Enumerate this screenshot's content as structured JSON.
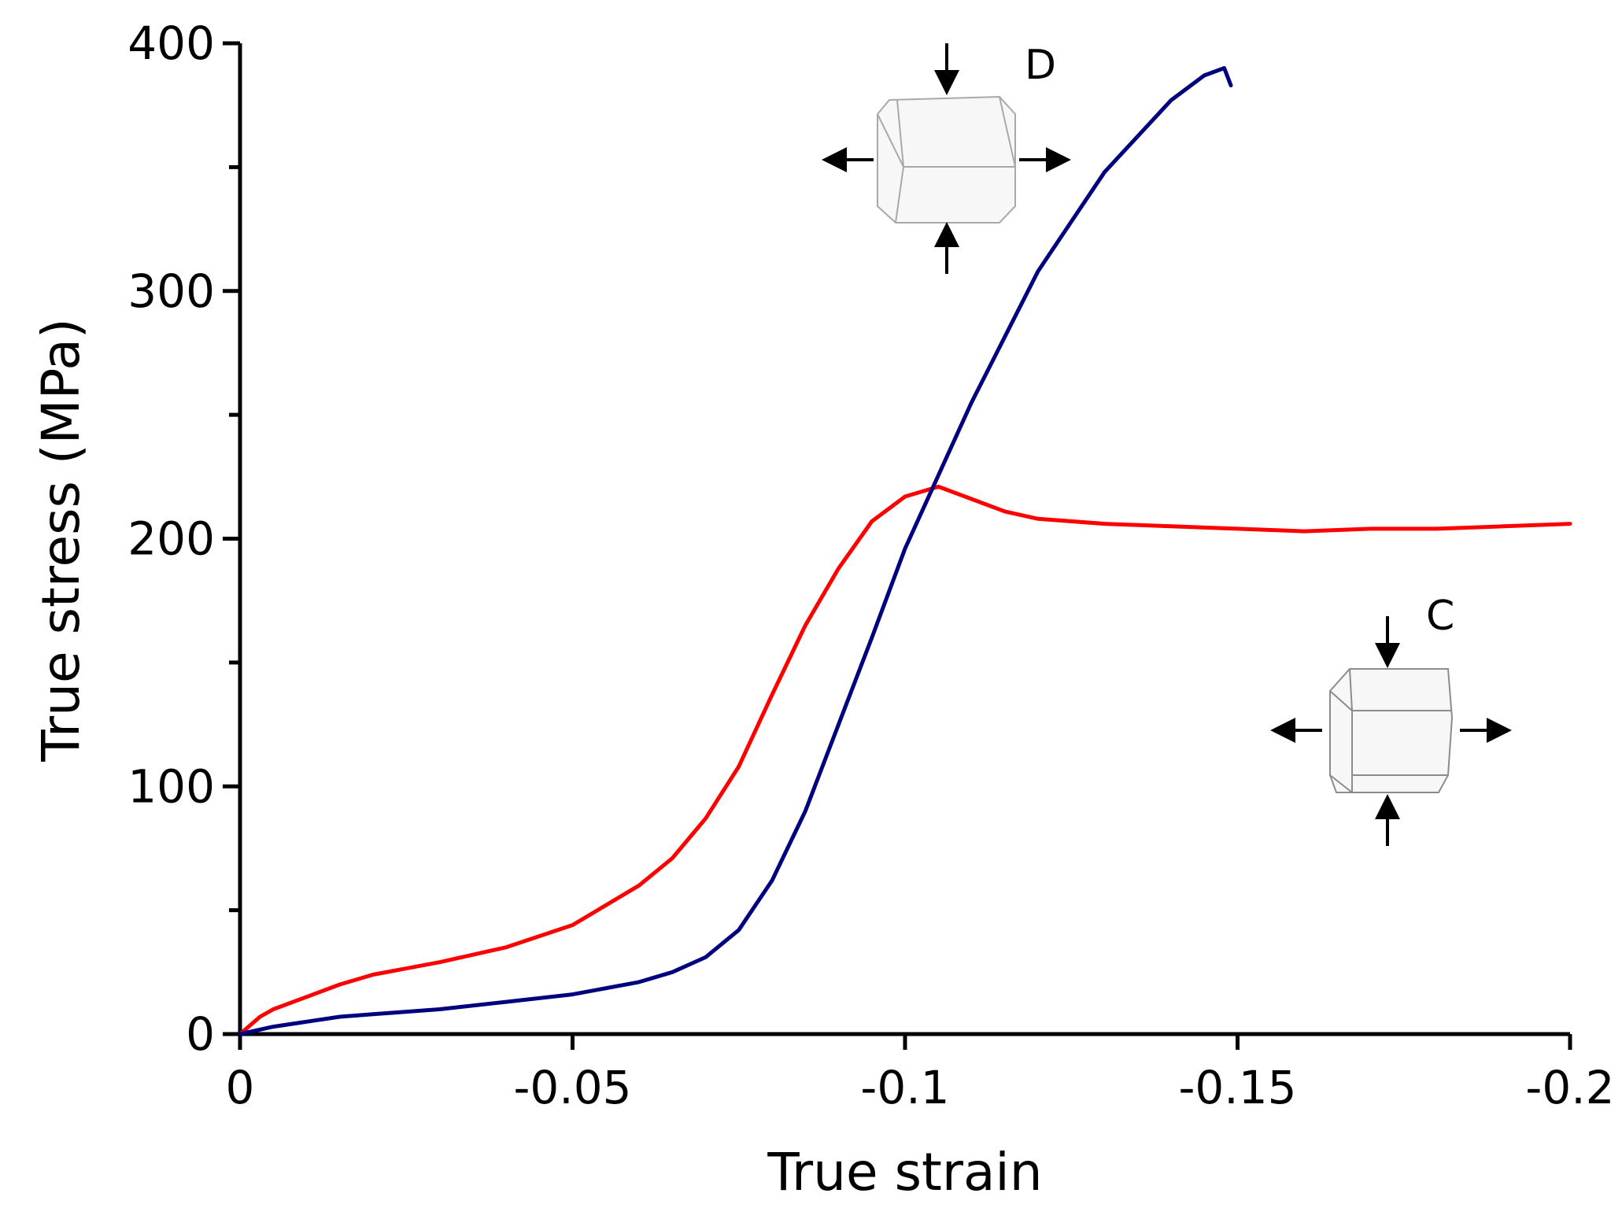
{
  "chart_data": {
    "type": "line",
    "title": "",
    "xlabel": "True strain",
    "ylabel": "True stress (MPa)",
    "xlim": [
      0,
      -0.2
    ],
    "ylim": [
      0,
      400
    ],
    "x_ticks": [
      0,
      -0.05,
      -0.1,
      -0.15,
      -0.2
    ],
    "x_tick_labels": [
      "0",
      "-0.05",
      "-0.1",
      "-0.15",
      "-0.2"
    ],
    "y_ticks": [
      0,
      100,
      200,
      300,
      400
    ],
    "y_tick_labels": [
      "0",
      "100",
      "200",
      "300",
      "400"
    ],
    "y_minor_ticks": [
      50,
      150,
      250,
      350
    ],
    "grid": false,
    "legend": "none",
    "series": [
      {
        "name": "D",
        "color": "#00007f",
        "x": [
          0,
          -0.005,
          -0.01,
          -0.015,
          -0.02,
          -0.03,
          -0.04,
          -0.05,
          -0.06,
          -0.065,
          -0.07,
          -0.075,
          -0.08,
          -0.085,
          -0.09,
          -0.095,
          -0.1,
          -0.11,
          -0.12,
          -0.13,
          -0.14,
          -0.145,
          -0.148,
          -0.149
        ],
        "y": [
          0,
          3,
          5,
          7,
          8,
          10,
          13,
          16,
          21,
          25,
          31,
          42,
          62,
          90,
          125,
          160,
          196,
          255,
          308,
          348,
          377,
          387,
          390,
          383
        ]
      },
      {
        "name": "C",
        "color": "#ff0000",
        "x": [
          0,
          -0.003,
          -0.005,
          -0.01,
          -0.015,
          -0.02,
          -0.03,
          -0.04,
          -0.05,
          -0.06,
          -0.065,
          -0.07,
          -0.075,
          -0.08,
          -0.085,
          -0.09,
          -0.095,
          -0.1,
          -0.105,
          -0.11,
          -0.115,
          -0.12,
          -0.13,
          -0.14,
          -0.15,
          -0.16,
          -0.17,
          -0.18,
          -0.19,
          -0.2
        ],
        "y": [
          0,
          7,
          10,
          15,
          20,
          24,
          29,
          35,
          44,
          60,
          71,
          87,
          108,
          137,
          165,
          188,
          207,
          217,
          221,
          216,
          211,
          208,
          206,
          205,
          204,
          203,
          204,
          204,
          205,
          206
        ]
      }
    ],
    "annotations": [
      {
        "label": "D",
        "near_series": "D",
        "description": "cube inset with vertical compression arrows and horizontal outward arrows"
      },
      {
        "label": "C",
        "near_series": "C",
        "description": "cube inset with vertical compression arrows and horizontal outward arrows"
      }
    ]
  }
}
